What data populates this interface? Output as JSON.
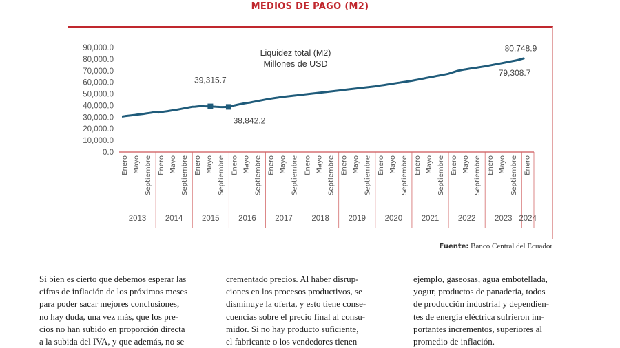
{
  "page_title": "MEDIOS DE PAGO (M2)",
  "chart_data": {
    "type": "line",
    "title_line1": "Liquidez total (M2)",
    "title_line2": "Millones de USD",
    "ylim": [
      0,
      90000
    ],
    "yticks": [
      "0.0",
      "10,000.0",
      "20,000.0",
      "30,000.0",
      "40,000.0",
      "50,000.0",
      "60,000.0",
      "70,000.0",
      "80,000.0",
      "90,000.0"
    ],
    "month_labels": [
      "Enero",
      "Mayo",
      "Septiembre"
    ],
    "years": [
      "2013",
      "2014",
      "2015",
      "2016",
      "2017",
      "2018",
      "2019",
      "2020",
      "2021",
      "2022",
      "2023",
      "2024"
    ],
    "series_color": "#1f5b7a",
    "series": [
      {
        "name": "",
        "values": [
          30500,
          30900,
          31200,
          31500,
          31800,
          32200,
          32500,
          32800,
          33200,
          33600,
          34000,
          34500,
          34000,
          34400,
          34800,
          35200,
          35600,
          36000,
          36400,
          36900,
          37400,
          37900,
          38400,
          38900,
          39000,
          39300,
          39500,
          39400,
          39300,
          39315.7,
          39100,
          38900,
          38800,
          38700,
          38800,
          38842.2,
          39500,
          40200,
          40800,
          41300,
          41800,
          42200,
          42600,
          43100,
          43600,
          44100,
          44600,
          45100,
          45600,
          46000,
          46400,
          46800,
          47200,
          47500,
          47800,
          48100,
          48400,
          48700,
          49000,
          49300,
          49600,
          49900,
          50200,
          50500,
          50800,
          51100,
          51400,
          51700,
          52000,
          52300,
          52600,
          52900,
          53200,
          53500,
          53800,
          54100,
          54400,
          54700,
          55000,
          55300,
          55600,
          55900,
          56200,
          56500,
          56900,
          57300,
          57700,
          58100,
          58500,
          58900,
          59300,
          59700,
          60100,
          60500,
          60900,
          61300,
          61800,
          62300,
          62800,
          63300,
          63800,
          64300,
          64800,
          65300,
          65800,
          66300,
          66800,
          67300,
          68200,
          69000,
          69800,
          70400,
          70900,
          71300,
          71700,
          72100,
          72500,
          72900,
          73300,
          73700,
          74200,
          74700,
          75200,
          75700,
          76200,
          76700,
          77200,
          77700,
          78200,
          78700,
          79308.7,
          80000,
          80748.9
        ]
      }
    ],
    "annotations": [
      {
        "label": "39,315.7",
        "x_index": 29,
        "value": 39315.7
      },
      {
        "label": "38,842.2",
        "x_index": 35,
        "value": 38842.2
      },
      {
        "label": "80,748.9",
        "x_index": 132,
        "value": 80748.9
      },
      {
        "label": "79,308.7",
        "x_index": 130,
        "value": 79308.7
      }
    ]
  },
  "source": {
    "label": "Fuente:",
    "text": "Banco Central del Ecuador"
  },
  "columns": [
    [
      "Si bien es cierto que debemos esperar las",
      "cifras de inflación de los próximos meses",
      "para poder sacar mejores conclusiones,",
      "no hay duda, una vez más, que los pre-",
      "cios no han subido en proporción directa",
      "a la subida del IVA, y que además, no se"
    ],
    [
      "crementado precios.  Al haber disrup-",
      "ciones en los procesos productivos, se",
      "disminuye la oferta, y esto tiene conse-",
      "cuencias sobre el precio final al consu-",
      "midor.  Si no hay producto suficiente,",
      "el fabricante o los vendedores tienen"
    ],
    [
      "ejemplo, gaseosas, agua embotellada,",
      "yogur, productos de panadería, todos",
      "de producción industrial y dependien-",
      "tes de energía eléctrica sufrieron im-",
      "portantes incrementos, superiores al",
      "promedio de inflación."
    ]
  ]
}
